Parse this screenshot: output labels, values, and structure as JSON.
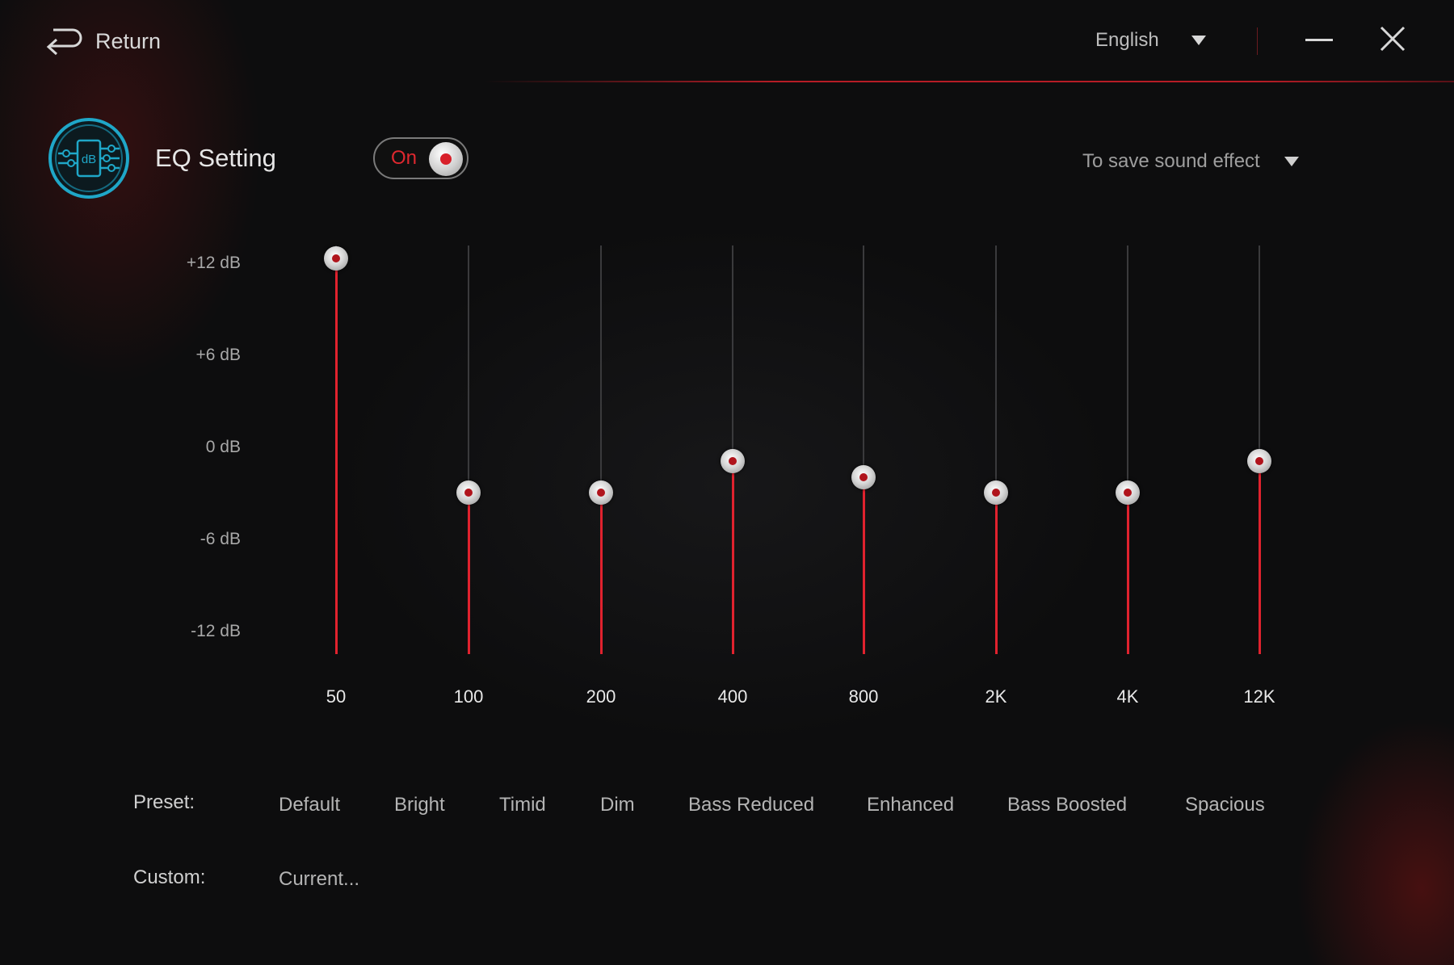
{
  "header": {
    "return_label": "Return",
    "language": "English",
    "icons": {
      "return": "return-arrow-icon",
      "caret": "caret-down-icon",
      "minimize": "minimize-icon",
      "close": "close-icon"
    }
  },
  "eq": {
    "icon": "db-equalizer-icon",
    "icon_text": "dB",
    "title": "EQ Setting",
    "toggle_label": "On",
    "toggle_state": true,
    "save_dropdown": "To save sound effect"
  },
  "scale": {
    "labels": [
      "+12 dB",
      "+6 dB",
      "0 dB",
      "-6 dB",
      "-12 dB"
    ],
    "min": -12,
    "max": 12
  },
  "bands": [
    {
      "freq": "50",
      "gain": 12
    },
    {
      "freq": "100",
      "gain": -3
    },
    {
      "freq": "200",
      "gain": -3
    },
    {
      "freq": "400",
      "gain": -1
    },
    {
      "freq": "800",
      "gain": -2
    },
    {
      "freq": "2K",
      "gain": -3
    },
    {
      "freq": "4K",
      "gain": -3
    },
    {
      "freq": "12K",
      "gain": -1
    }
  ],
  "colors": {
    "accent": "#e0222e",
    "icon": "#1fa7c8"
  },
  "presets": {
    "label": "Preset:",
    "items": [
      "Default",
      "Bright",
      "Timid",
      "Dim",
      "Bass Reduced",
      "Enhanced",
      "Bass Boosted",
      "Spacious"
    ]
  },
  "custom": {
    "label": "Custom:",
    "items": [
      "Current..."
    ]
  }
}
